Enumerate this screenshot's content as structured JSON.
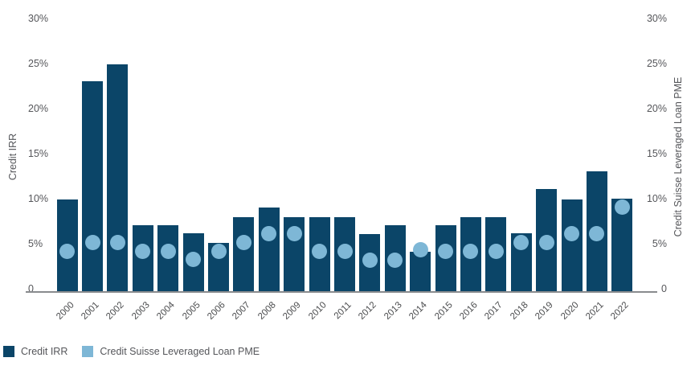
{
  "chart_data": {
    "type": "bar",
    "title": "",
    "categories": [
      "2000",
      "2001",
      "2002",
      "2003",
      "2004",
      "2005",
      "2006",
      "2007",
      "2008",
      "2009",
      "2010",
      "2011",
      "2012",
      "2013",
      "2014",
      "2015",
      "2016",
      "2017",
      "2018",
      "2019",
      "2020",
      "2021",
      "2022"
    ],
    "series": [
      {
        "name": "Credit IRR",
        "type": "bar",
        "color": "#0b4568",
        "values": [
          10.2,
          23.3,
          25.2,
          7.3,
          7.3,
          6.4,
          5.4,
          8.2,
          9.3,
          8.2,
          8.2,
          8.2,
          6.3,
          7.3,
          4.4,
          7.3,
          8.2,
          8.2,
          6.4,
          11.3,
          10.2,
          13.3,
          10.3
        ]
      },
      {
        "name": "Credit Suisse Leveraged Loan PME",
        "type": "scatter",
        "color": "#7eb7d6",
        "values": [
          4.4,
          5.4,
          5.4,
          4.4,
          4.4,
          3.5,
          4.4,
          5.4,
          6.4,
          6.4,
          4.4,
          4.4,
          3.4,
          3.4,
          4.6,
          4.4,
          4.4,
          4.4,
          5.4,
          5.4,
          6.4,
          6.4,
          9.3
        ]
      }
    ],
    "ylabel_left": "Credit IRR",
    "ylabel_right": "Credit Suisse Leveraged Loan PME",
    "ylim": [
      0,
      30
    ],
    "yticks": [
      {
        "v": 0,
        "label": "0"
      },
      {
        "v": 5,
        "label": "5%"
      },
      {
        "v": 10,
        "label": "10%"
      },
      {
        "v": 15,
        "label": "15%"
      },
      {
        "v": 20,
        "label": "20%"
      },
      {
        "v": 25,
        "label": "25%"
      },
      {
        "v": 30,
        "label": "30%"
      }
    ],
    "grid": false,
    "legend_position": "bottom-left",
    "axis_line_color": "#898b8e",
    "tick_text_color": "#55565a",
    "xtick_text_color": "#4b4c4e"
  }
}
